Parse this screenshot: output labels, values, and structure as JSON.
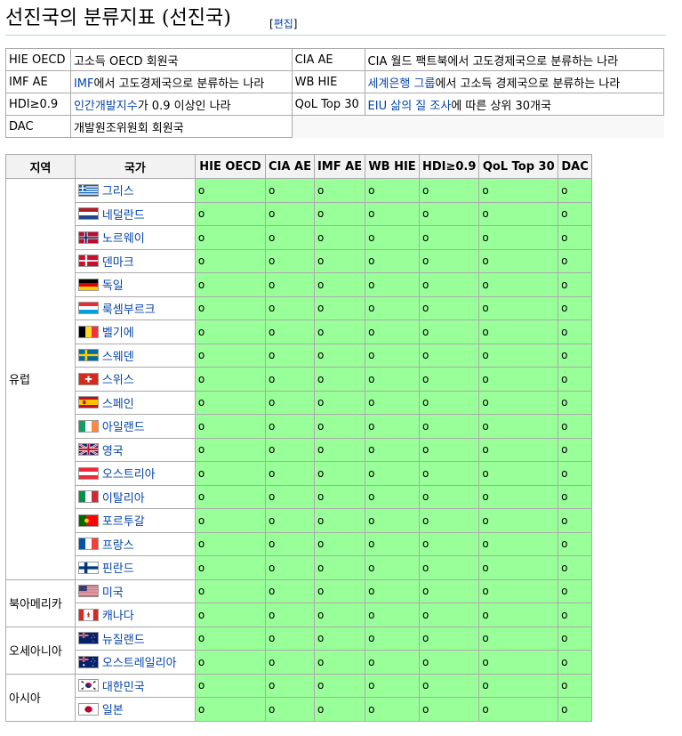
{
  "heading": {
    "title": "선진국의 분류지표 (선진국)",
    "edit_label": "편집"
  },
  "legend": {
    "rows": [
      [
        {
          "key": "HIE OECD",
          "parts": [
            {
              "text": "고소득 OECD 회원국",
              "link": false
            }
          ]
        },
        {
          "key": "CIA AE",
          "parts": [
            {
              "text": "CIA 월드 팩트북에서 고도경제국으로 분류하는 나라",
              "link": false
            }
          ]
        }
      ],
      [
        {
          "key": "IMF AE",
          "parts": [
            {
              "text": "IMF",
              "link": true
            },
            {
              "text": "에서 고도경제국으로 분류하는 나라",
              "link": false
            }
          ]
        },
        {
          "key": "WB HIE",
          "parts": [
            {
              "text": "세계은행 그룹",
              "link": true
            },
            {
              "text": "에서 고소득 경제국으로 분류하는 나라",
              "link": false
            }
          ]
        }
      ],
      [
        {
          "key": "HDI≥0.9",
          "parts": [
            {
              "text": "인간개발지수",
              "link": true
            },
            {
              "text": "가 0.9 이상인 나라",
              "link": false
            }
          ]
        },
        {
          "key": "QoL Top 30",
          "parts": [
            {
              "text": "EIU 삶의 질 조사",
              "link": true
            },
            {
              "text": "에 따른 상위 30개국",
              "link": false
            }
          ]
        }
      ],
      [
        {
          "key": "DAC",
          "parts": [
            {
              "text": "개발원조위원회 회원국",
              "link": false
            }
          ]
        }
      ]
    ]
  },
  "table": {
    "headers": [
      "지역",
      "국가",
      "HIE OECD",
      "CIA AE",
      "IMF AE",
      "WB HIE",
      "HDI≥0.9",
      "QoL Top 30",
      "DAC"
    ],
    "mark": "o",
    "groups": [
      {
        "region": "유럽",
        "countries": [
          {
            "name": "그리스",
            "flag": "greece"
          },
          {
            "name": "네덜란드",
            "flag": "netherlands"
          },
          {
            "name": "노르웨이",
            "flag": "norway"
          },
          {
            "name": "덴마크",
            "flag": "denmark"
          },
          {
            "name": "독일",
            "flag": "germany"
          },
          {
            "name": "룩셈부르크",
            "flag": "luxembourg"
          },
          {
            "name": "벨기에",
            "flag": "belgium"
          },
          {
            "name": "스웨덴",
            "flag": "sweden"
          },
          {
            "name": "스위스",
            "flag": "switzerland"
          },
          {
            "name": "스페인",
            "flag": "spain"
          },
          {
            "name": "아일랜드",
            "flag": "ireland"
          },
          {
            "name": "영국",
            "flag": "uk"
          },
          {
            "name": "오스트리아",
            "flag": "austria"
          },
          {
            "name": "이탈리아",
            "flag": "italy"
          },
          {
            "name": "포르투갈",
            "flag": "portugal"
          },
          {
            "name": "프랑스",
            "flag": "france"
          },
          {
            "name": "핀란드",
            "flag": "finland"
          }
        ]
      },
      {
        "region": "북아메리카",
        "countries": [
          {
            "name": "미국",
            "flag": "usa"
          },
          {
            "name": "캐나다",
            "flag": "canada"
          }
        ]
      },
      {
        "region": "오세아니아",
        "countries": [
          {
            "name": "뉴질랜드",
            "flag": "newzealand"
          },
          {
            "name": "오스트레일리아",
            "flag": "australia"
          }
        ]
      },
      {
        "region": "아시아",
        "countries": [
          {
            "name": "대한민국",
            "flag": "korea"
          },
          {
            "name": "일본",
            "flag": "japan"
          }
        ]
      }
    ]
  },
  "colors": {
    "mark_cell": "#99ff99",
    "link": "#0645ad",
    "header_bg": "#f2f2f2"
  }
}
